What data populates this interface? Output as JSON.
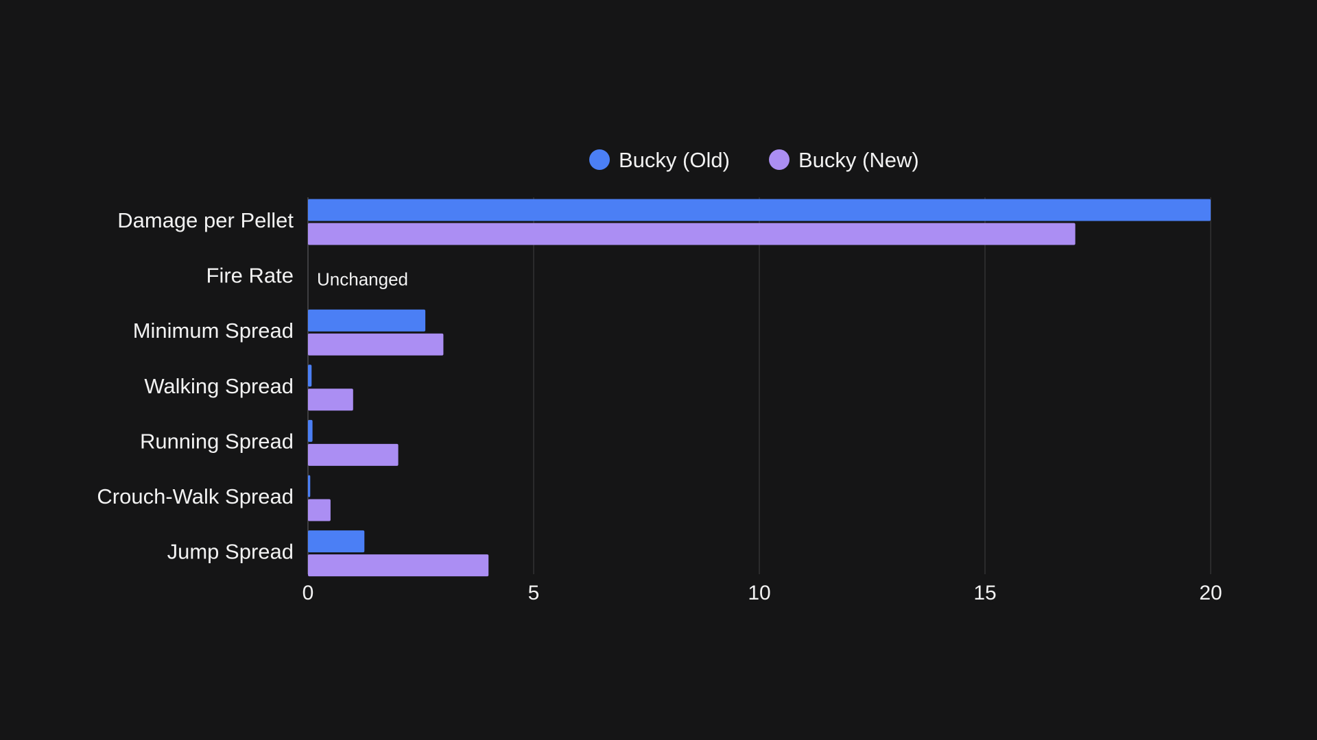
{
  "chart_data": {
    "type": "bar",
    "orientation": "horizontal",
    "categories": [
      "Damage per Pellet",
      "Fire Rate",
      "Minimum Spread",
      "Walking Spread",
      "Running Spread",
      "Crouch-Walk Spread",
      "Jump Spread"
    ],
    "series": [
      {
        "name": "Bucky (Old)",
        "color": "#4b7ff5",
        "values": [
          20,
          0,
          2.6,
          0.08,
          0.1,
          0.05,
          1.25
        ]
      },
      {
        "name": "Bucky (New)",
        "color": "#ab8ef3",
        "values": [
          17,
          0,
          3.0,
          1.0,
          2.0,
          0.5,
          4.0
        ]
      }
    ],
    "annotations": [
      {
        "category": "Fire Rate",
        "text": "Unchanged"
      }
    ],
    "xlim": [
      0,
      20
    ],
    "xticks": [
      "0",
      "5",
      "10",
      "15",
      "20"
    ],
    "grid": true,
    "legend_position": "top-center",
    "title": "",
    "xlabel": "",
    "ylabel": ""
  }
}
